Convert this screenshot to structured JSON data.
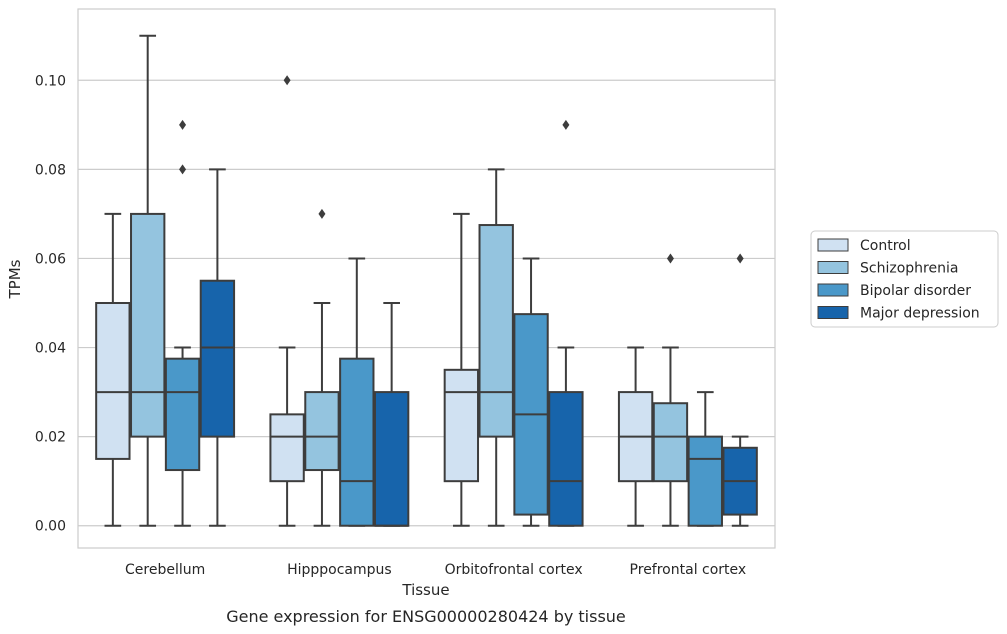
{
  "chart_data": {
    "type": "box",
    "title": "",
    "xlabel": "Tissue",
    "ylabel": "TPMs",
    "caption": "Gene expression for ENSG00000280424 by tissue",
    "ylim": [
      -0.005,
      0.116
    ],
    "yticks": [
      0.0,
      0.02,
      0.04,
      0.06,
      0.08,
      0.1
    ],
    "ytick_labels": [
      "0.00",
      "0.02",
      "0.04",
      "0.06",
      "0.08",
      "0.10"
    ],
    "grid": true,
    "legend_position": "right",
    "categories": [
      "Cerebellum",
      "Hipppocampus",
      "Orbitofrontal cortex",
      "Prefrontal cortex"
    ],
    "series": [
      {
        "name": "Control",
        "color": "#d0e1f2",
        "boxes": [
          {
            "whislo": 0.0,
            "q1": 0.015,
            "med": 0.03,
            "q3": 0.05,
            "whishi": 0.07,
            "fliers": []
          },
          {
            "whislo": 0.0,
            "q1": 0.01,
            "med": 0.02,
            "q3": 0.025,
            "whishi": 0.04,
            "fliers": [
              0.1
            ]
          },
          {
            "whislo": 0.0,
            "q1": 0.01,
            "med": 0.03,
            "q3": 0.035,
            "whishi": 0.07,
            "fliers": []
          },
          {
            "whislo": 0.0,
            "q1": 0.01,
            "med": 0.02,
            "q3": 0.03,
            "whishi": 0.04,
            "fliers": []
          }
        ]
      },
      {
        "name": "Schizophrenia",
        "color": "#94c4df",
        "boxes": [
          {
            "whislo": 0.0,
            "q1": 0.02,
            "med": 0.03,
            "q3": 0.07,
            "whishi": 0.11,
            "fliers": []
          },
          {
            "whislo": 0.0,
            "q1": 0.0125,
            "med": 0.02,
            "q3": 0.03,
            "whishi": 0.05,
            "fliers": [
              0.07
            ]
          },
          {
            "whislo": 0.0,
            "q1": 0.02,
            "med": 0.03,
            "q3": 0.0675,
            "whishi": 0.08,
            "fliers": []
          },
          {
            "whislo": 0.0,
            "q1": 0.01,
            "med": 0.02,
            "q3": 0.0275,
            "whishi": 0.04,
            "fliers": [
              0.06
            ]
          }
        ]
      },
      {
        "name": "Bipolar disorder",
        "color": "#4a98c9",
        "boxes": [
          {
            "whislo": 0.0,
            "q1": 0.0125,
            "med": 0.03,
            "q3": 0.0375,
            "whishi": 0.04,
            "fliers": [
              0.08,
              0.09
            ]
          },
          {
            "whislo": 0.0,
            "q1": 0.0,
            "med": 0.01,
            "q3": 0.0375,
            "whishi": 0.06,
            "fliers": []
          },
          {
            "whislo": 0.0,
            "q1": 0.0025,
            "med": 0.025,
            "q3": 0.0475,
            "whishi": 0.06,
            "fliers": []
          },
          {
            "whislo": 0.0,
            "q1": 0.0,
            "med": 0.015,
            "q3": 0.02,
            "whishi": 0.03,
            "fliers": []
          }
        ]
      },
      {
        "name": "Major depression",
        "color": "#1764ab",
        "boxes": [
          {
            "whislo": 0.0,
            "q1": 0.02,
            "med": 0.04,
            "q3": 0.055,
            "whishi": 0.08,
            "fliers": []
          },
          {
            "whislo": 0.0,
            "q1": 0.0,
            "med": 0.0,
            "q3": 0.03,
            "whishi": 0.05,
            "fliers": []
          },
          {
            "whislo": 0.0,
            "q1": 0.0,
            "med": 0.01,
            "q3": 0.03,
            "whishi": 0.04,
            "fliers": [
              0.09
            ]
          },
          {
            "whislo": 0.0,
            "q1": 0.0025,
            "med": 0.01,
            "q3": 0.0175,
            "whishi": 0.02,
            "fliers": [
              0.06
            ]
          }
        ]
      }
    ]
  }
}
